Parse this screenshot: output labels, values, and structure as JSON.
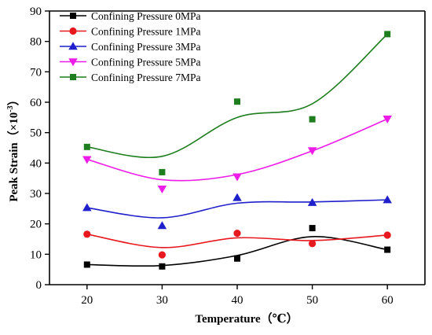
{
  "chart_data": {
    "type": "scatter",
    "xlabel": "Temperature（℃）",
    "ylabel": "Peak Strain（×10",
    "ylabel_exponent": "-3",
    "ylabel_close": "）",
    "xlim": [
      15,
      65
    ],
    "ylim": [
      0,
      90
    ],
    "x_ticks": [
      20,
      30,
      40,
      50,
      60
    ],
    "y_ticks": [
      0,
      10,
      20,
      30,
      40,
      50,
      60,
      70,
      80,
      90
    ],
    "grid": false,
    "legend_position": "top-left",
    "x": [
      20,
      30,
      40,
      50,
      60
    ],
    "series": [
      {
        "name": "Confining Pressure 0MPa",
        "marker": "square",
        "color": "#000000",
        "values": [
          6.6,
          6.0,
          8.6,
          18.6,
          11.5
        ],
        "curve": [
          6.6,
          6.3,
          9.6,
          15.8,
          11.5
        ]
      },
      {
        "name": "Confining Pressure 1MPa",
        "marker": "circle",
        "color": "#e8191e",
        "values": [
          16.6,
          9.8,
          16.9,
          13.5,
          16.3
        ],
        "curve": [
          16.6,
          12.2,
          15.4,
          14.5,
          16.3
        ]
      },
      {
        "name": "Confining Pressure 3MPa",
        "marker": "triangle-up",
        "color": "#1f1fcc",
        "values": [
          25.3,
          19.4,
          28.6,
          27.0,
          27.9
        ],
        "curve": [
          25.3,
          22.0,
          26.8,
          27.2,
          27.9
        ]
      },
      {
        "name": "Confining Pressure 5MPa",
        "marker": "triangle-down",
        "color": "#ee1ce8",
        "values": [
          41.2,
          31.5,
          35.5,
          44.1,
          54.5
        ],
        "curve": [
          41.2,
          34.5,
          36.2,
          44.0,
          54.5
        ]
      },
      {
        "name": "Confining Pressure 7MPa",
        "marker": "square",
        "color": "#1e7d1e",
        "values": [
          45.3,
          37.0,
          60.2,
          54.4,
          82.4
        ],
        "curve": [
          45.3,
          42.2,
          55.0,
          59.5,
          82.4
        ]
      }
    ]
  }
}
